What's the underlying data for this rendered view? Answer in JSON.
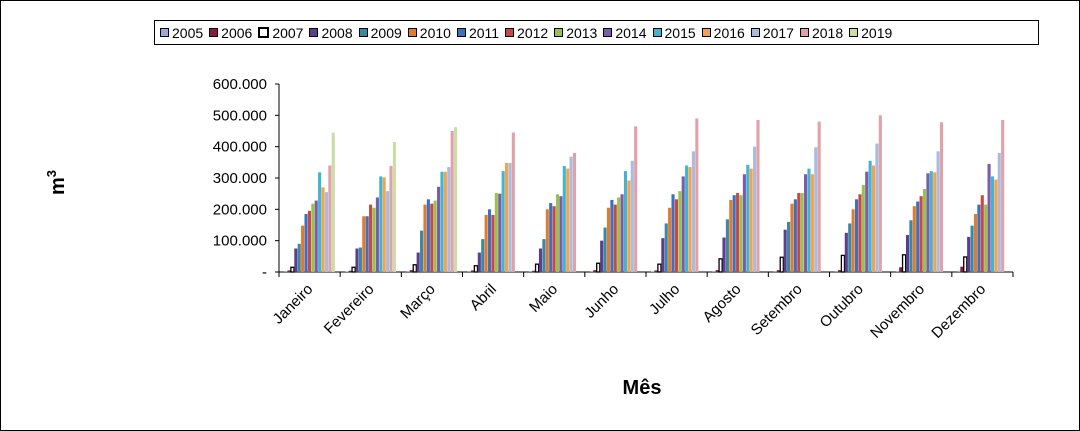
{
  "chart_data": {
    "type": "bar",
    "xlabel": "Mês",
    "ylabel": {
      "base": "m",
      "sup": "3"
    },
    "ylim": [
      0,
      600000
    ],
    "yticks": [
      0,
      100000,
      200000,
      300000,
      400000,
      500000,
      600000
    ],
    "ytick_labels": [
      "-",
      "100.000",
      "200.000",
      "300.000",
      "400.000",
      "500.000",
      "600.000"
    ],
    "legend_position": "top",
    "grid": false,
    "categories": [
      "Janeiro",
      "Fevereiro",
      "Março",
      "Abril",
      "Maio",
      "Junho",
      "Julho",
      "Agosto",
      "Setembro",
      "Outubro",
      "Novembro",
      "Dezembro"
    ],
    "series": [
      {
        "name": "2005",
        "color": "#9aa9de",
        "values": [
          3000,
          2000,
          3000,
          3000,
          3000,
          3000,
          2000,
          3000,
          3000,
          3000,
          3000,
          4000
        ]
      },
      {
        "name": "2006",
        "color": "#8b1a3a",
        "values": [
          5000,
          4000,
          6000,
          5000,
          4000,
          6000,
          5000,
          6000,
          6000,
          6000,
          15000,
          17000
        ]
      },
      {
        "name": "2007",
        "color": "#ffffff",
        "values": [
          15000,
          15000,
          23000,
          20000,
          25000,
          28000,
          25000,
          42000,
          47000,
          53000,
          55000,
          48000
        ]
      },
      {
        "name": "2008",
        "color": "#5b3f8c",
        "values": [
          75000,
          75000,
          62000,
          62000,
          75000,
          100000,
          108000,
          110000,
          135000,
          125000,
          118000,
          112000
        ]
      },
      {
        "name": "2009",
        "color": "#3a87a6",
        "values": [
          90000,
          78000,
          132000,
          105000,
          105000,
          142000,
          155000,
          168000,
          160000,
          155000,
          165000,
          148000
        ]
      },
      {
        "name": "2010",
        "color": "#e07a2c",
        "values": [
          148000,
          178000,
          215000,
          182000,
          200000,
          205000,
          205000,
          230000,
          218000,
          200000,
          210000,
          185000
        ]
      },
      {
        "name": "2011",
        "color": "#3f6fbf",
        "values": [
          185000,
          178000,
          232000,
          200000,
          220000,
          230000,
          248000,
          245000,
          232000,
          232000,
          225000,
          215000
        ]
      },
      {
        "name": "2012",
        "color": "#c84848",
        "values": [
          195000,
          215000,
          218000,
          182000,
          210000,
          215000,
          232000,
          252000,
          252000,
          248000,
          242000,
          245000
        ]
      },
      {
        "name": "2013",
        "color": "#98c24c",
        "values": [
          218000,
          205000,
          228000,
          252000,
          248000,
          238000,
          258000,
          245000,
          252000,
          278000,
          265000,
          215000
        ]
      },
      {
        "name": "2014",
        "color": "#7a5cab",
        "values": [
          228000,
          238000,
          272000,
          250000,
          242000,
          248000,
          305000,
          312000,
          312000,
          320000,
          315000,
          345000
        ]
      },
      {
        "name": "2015",
        "color": "#41b4cf",
        "values": [
          318000,
          305000,
          320000,
          322000,
          338000,
          322000,
          340000,
          342000,
          330000,
          355000,
          322000,
          305000
        ]
      },
      {
        "name": "2016",
        "color": "#f5a24f",
        "values": [
          270000,
          302000,
          320000,
          348000,
          330000,
          292000,
          335000,
          330000,
          312000,
          340000,
          318000,
          295000
        ]
      },
      {
        "name": "2017",
        "color": "#a9bbdf",
        "values": [
          255000,
          258000,
          335000,
          348000,
          368000,
          355000,
          385000,
          400000,
          398000,
          410000,
          385000,
          380000
        ]
      },
      {
        "name": "2018",
        "color": "#e1a1a8",
        "values": [
          340000,
          338000,
          450000,
          445000,
          380000,
          465000,
          490000,
          485000,
          480000,
          500000,
          478000,
          485000
        ]
      },
      {
        "name": "2019",
        "color": "#c9dda5",
        "values": [
          445000,
          415000,
          462000,
          null,
          null,
          null,
          null,
          null,
          null,
          null,
          null,
          null
        ]
      }
    ]
  }
}
